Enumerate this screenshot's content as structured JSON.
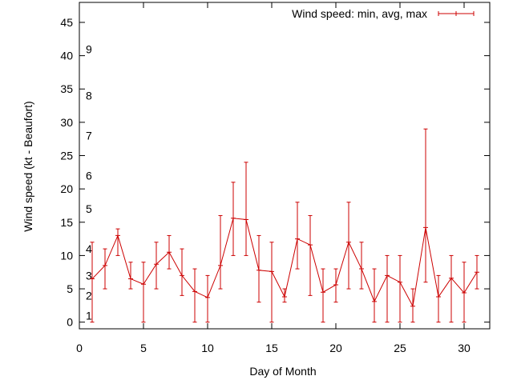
{
  "chart_data": {
    "type": "line",
    "title": "",
    "xlabel": "Day of Month",
    "ylabel": "Wind speed (kt - Beaufort)",
    "xlim": [
      0,
      32
    ],
    "ylim": [
      -1,
      48
    ],
    "xticks": [
      0,
      5,
      10,
      15,
      20,
      25,
      30
    ],
    "yticks": [
      0,
      5,
      10,
      15,
      20,
      25,
      30,
      35,
      40,
      45
    ],
    "grid": false,
    "legend": {
      "position": "top-right"
    },
    "beaufort_labels": [
      {
        "label": "1",
        "y": 1
      },
      {
        "label": "2",
        "y": 4
      },
      {
        "label": "3",
        "y": 7
      },
      {
        "label": "4",
        "y": 11
      },
      {
        "label": "5",
        "y": 17
      },
      {
        "label": "6",
        "y": 22
      },
      {
        "label": "7",
        "y": 28
      },
      {
        "label": "8",
        "y": 34
      },
      {
        "label": "9",
        "y": 41
      }
    ],
    "series": [
      {
        "name": "Wind speed: min, avg, max",
        "color": "#cc0000",
        "x": [
          1,
          2,
          3,
          4,
          5,
          6,
          7,
          8,
          9,
          10,
          11,
          12,
          13,
          14,
          15,
          16,
          17,
          18,
          19,
          20,
          21,
          22,
          23,
          24,
          25,
          26,
          27,
          28,
          29,
          30,
          31
        ],
        "avg": [
          6.5,
          8.5,
          13,
          6.5,
          5.7,
          8.7,
          10.5,
          7,
          4.6,
          3.7,
          8.5,
          15.6,
          15.4,
          7.8,
          7.6,
          3.8,
          12.5,
          11.6,
          4.5,
          5.6,
          12,
          8,
          3.1,
          7,
          6,
          2.4,
          14.2,
          3.8,
          6.6,
          4.4,
          7.5
        ],
        "min": [
          0,
          5,
          10,
          5,
          0,
          5,
          8,
          4,
          0,
          0,
          5,
          10,
          10,
          3,
          0,
          3,
          8,
          4,
          0,
          3,
          5,
          5,
          0,
          0,
          0,
          0,
          6,
          0,
          0,
          0,
          5
        ],
        "max": [
          12,
          11,
          14,
          9,
          9,
          12,
          13,
          11,
          8,
          7,
          16,
          21,
          24,
          13,
          12,
          5,
          18,
          16,
          8,
          8,
          18,
          12,
          8,
          10,
          10,
          5,
          29,
          7,
          10,
          9,
          10
        ]
      }
    ]
  }
}
